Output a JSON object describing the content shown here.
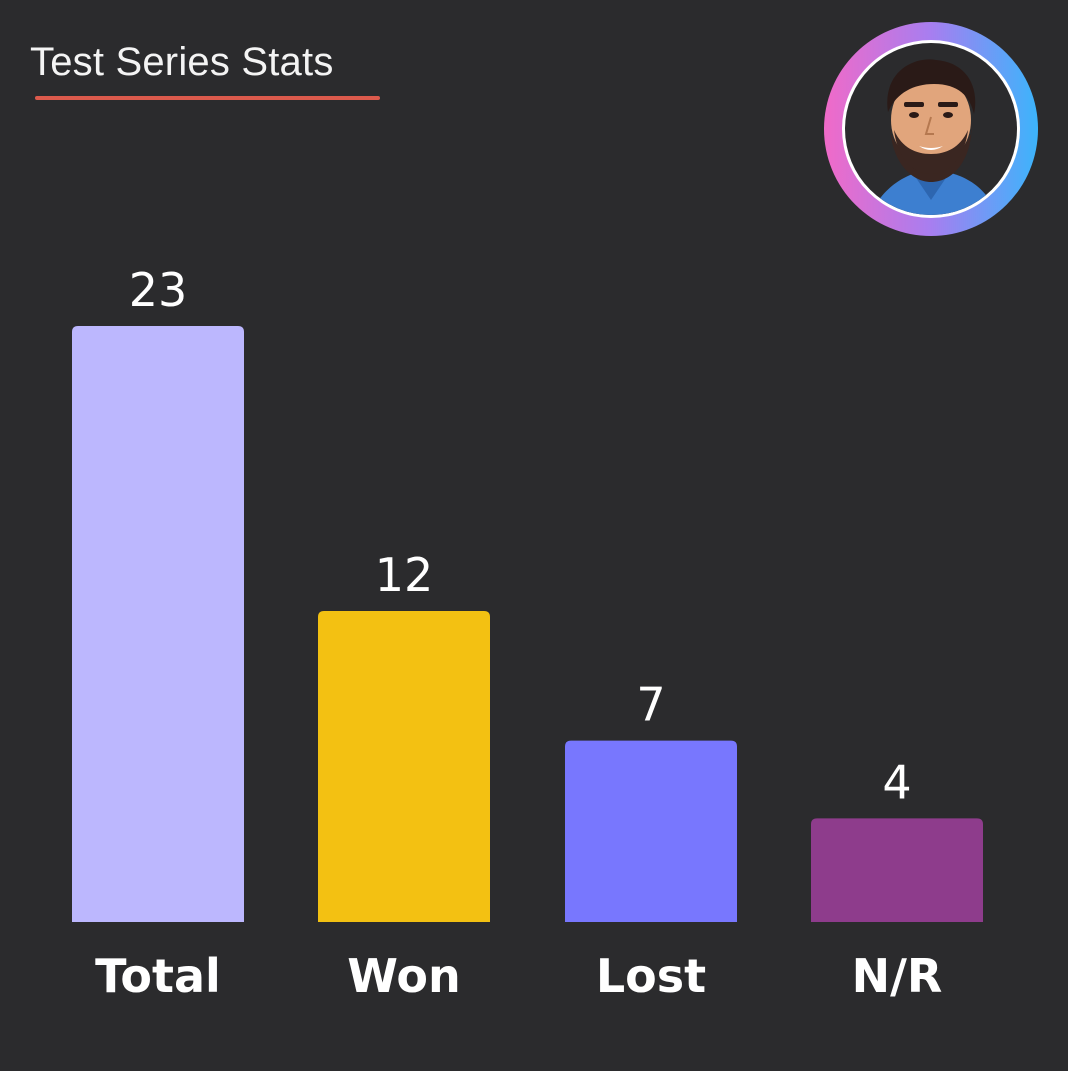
{
  "header": {
    "title": "Test Series Stats",
    "accent_color": "#dc5a4c"
  },
  "avatar": {
    "icon": "player-avatar-icon",
    "ring_colors": [
      "#f06ac8",
      "#a77ef0",
      "#3cb4fb"
    ]
  },
  "chart_data": {
    "type": "bar",
    "categories": [
      "Total",
      "Won",
      "Lost",
      "N/R"
    ],
    "values": [
      23,
      12,
      7,
      4
    ],
    "colors": [
      "#bcb7fe",
      "#f3c112",
      "#7877fe",
      "#8e3c8c"
    ],
    "title": "Test Series Stats",
    "xlabel": "",
    "ylabel": "",
    "ylim": [
      0,
      23
    ],
    "grid": false,
    "legend": "none"
  }
}
